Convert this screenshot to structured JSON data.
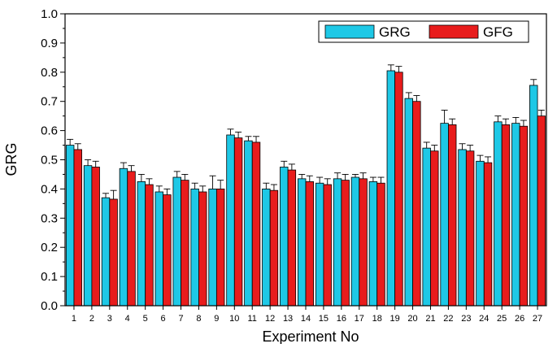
{
  "chart_data": {
    "type": "bar",
    "title": "",
    "xlabel": "Experiment No",
    "ylabel": "GRG",
    "ylim": [
      0.0,
      1.0
    ],
    "yticks": [
      "0.0",
      "0.1",
      "0.2",
      "0.3",
      "0.4",
      "0.5",
      "0.6",
      "0.7",
      "0.8",
      "0.9",
      "1.0"
    ],
    "categories": [
      "1",
      "2",
      "3",
      "4",
      "5",
      "6",
      "7",
      "8",
      "9",
      "10",
      "11",
      "12",
      "13",
      "14",
      "15",
      "16",
      "17",
      "18",
      "19",
      "20",
      "21",
      "22",
      "23",
      "24",
      "25",
      "26",
      "27"
    ],
    "legend_position": "top-right",
    "grid": false,
    "series": [
      {
        "name": "GRG",
        "color": "#1ec8e6",
        "values": [
          0.55,
          0.48,
          0.37,
          0.47,
          0.425,
          0.39,
          0.44,
          0.4,
          0.4,
          0.585,
          0.565,
          0.4,
          0.475,
          0.435,
          0.42,
          0.435,
          0.44,
          0.425,
          0.805,
          0.71,
          0.54,
          0.625,
          0.535,
          0.495,
          0.63,
          0.625,
          0.755
        ],
        "errors": [
          0.02,
          0.02,
          0.015,
          0.02,
          0.025,
          0.02,
          0.02,
          0.02,
          0.045,
          0.02,
          0.015,
          0.02,
          0.02,
          0.015,
          0.02,
          0.02,
          0.01,
          0.015,
          0.02,
          0.02,
          0.02,
          0.045,
          0.02,
          0.02,
          0.02,
          0.02,
          0.02
        ]
      },
      {
        "name": "GFG",
        "color": "#e81c1c",
        "values": [
          0.535,
          0.475,
          0.365,
          0.46,
          0.415,
          0.38,
          0.43,
          0.39,
          0.4,
          0.575,
          0.56,
          0.395,
          0.465,
          0.425,
          0.415,
          0.43,
          0.435,
          0.42,
          0.8,
          0.7,
          0.53,
          0.62,
          0.53,
          0.49,
          0.62,
          0.615,
          0.65
        ],
        "errors": [
          0.02,
          0.02,
          0.03,
          0.02,
          0.02,
          0.02,
          0.02,
          0.02,
          0.03,
          0.02,
          0.02,
          0.02,
          0.02,
          0.02,
          0.02,
          0.02,
          0.02,
          0.02,
          0.02,
          0.02,
          0.02,
          0.02,
          0.02,
          0.02,
          0.02,
          0.02,
          0.02
        ]
      }
    ]
  }
}
